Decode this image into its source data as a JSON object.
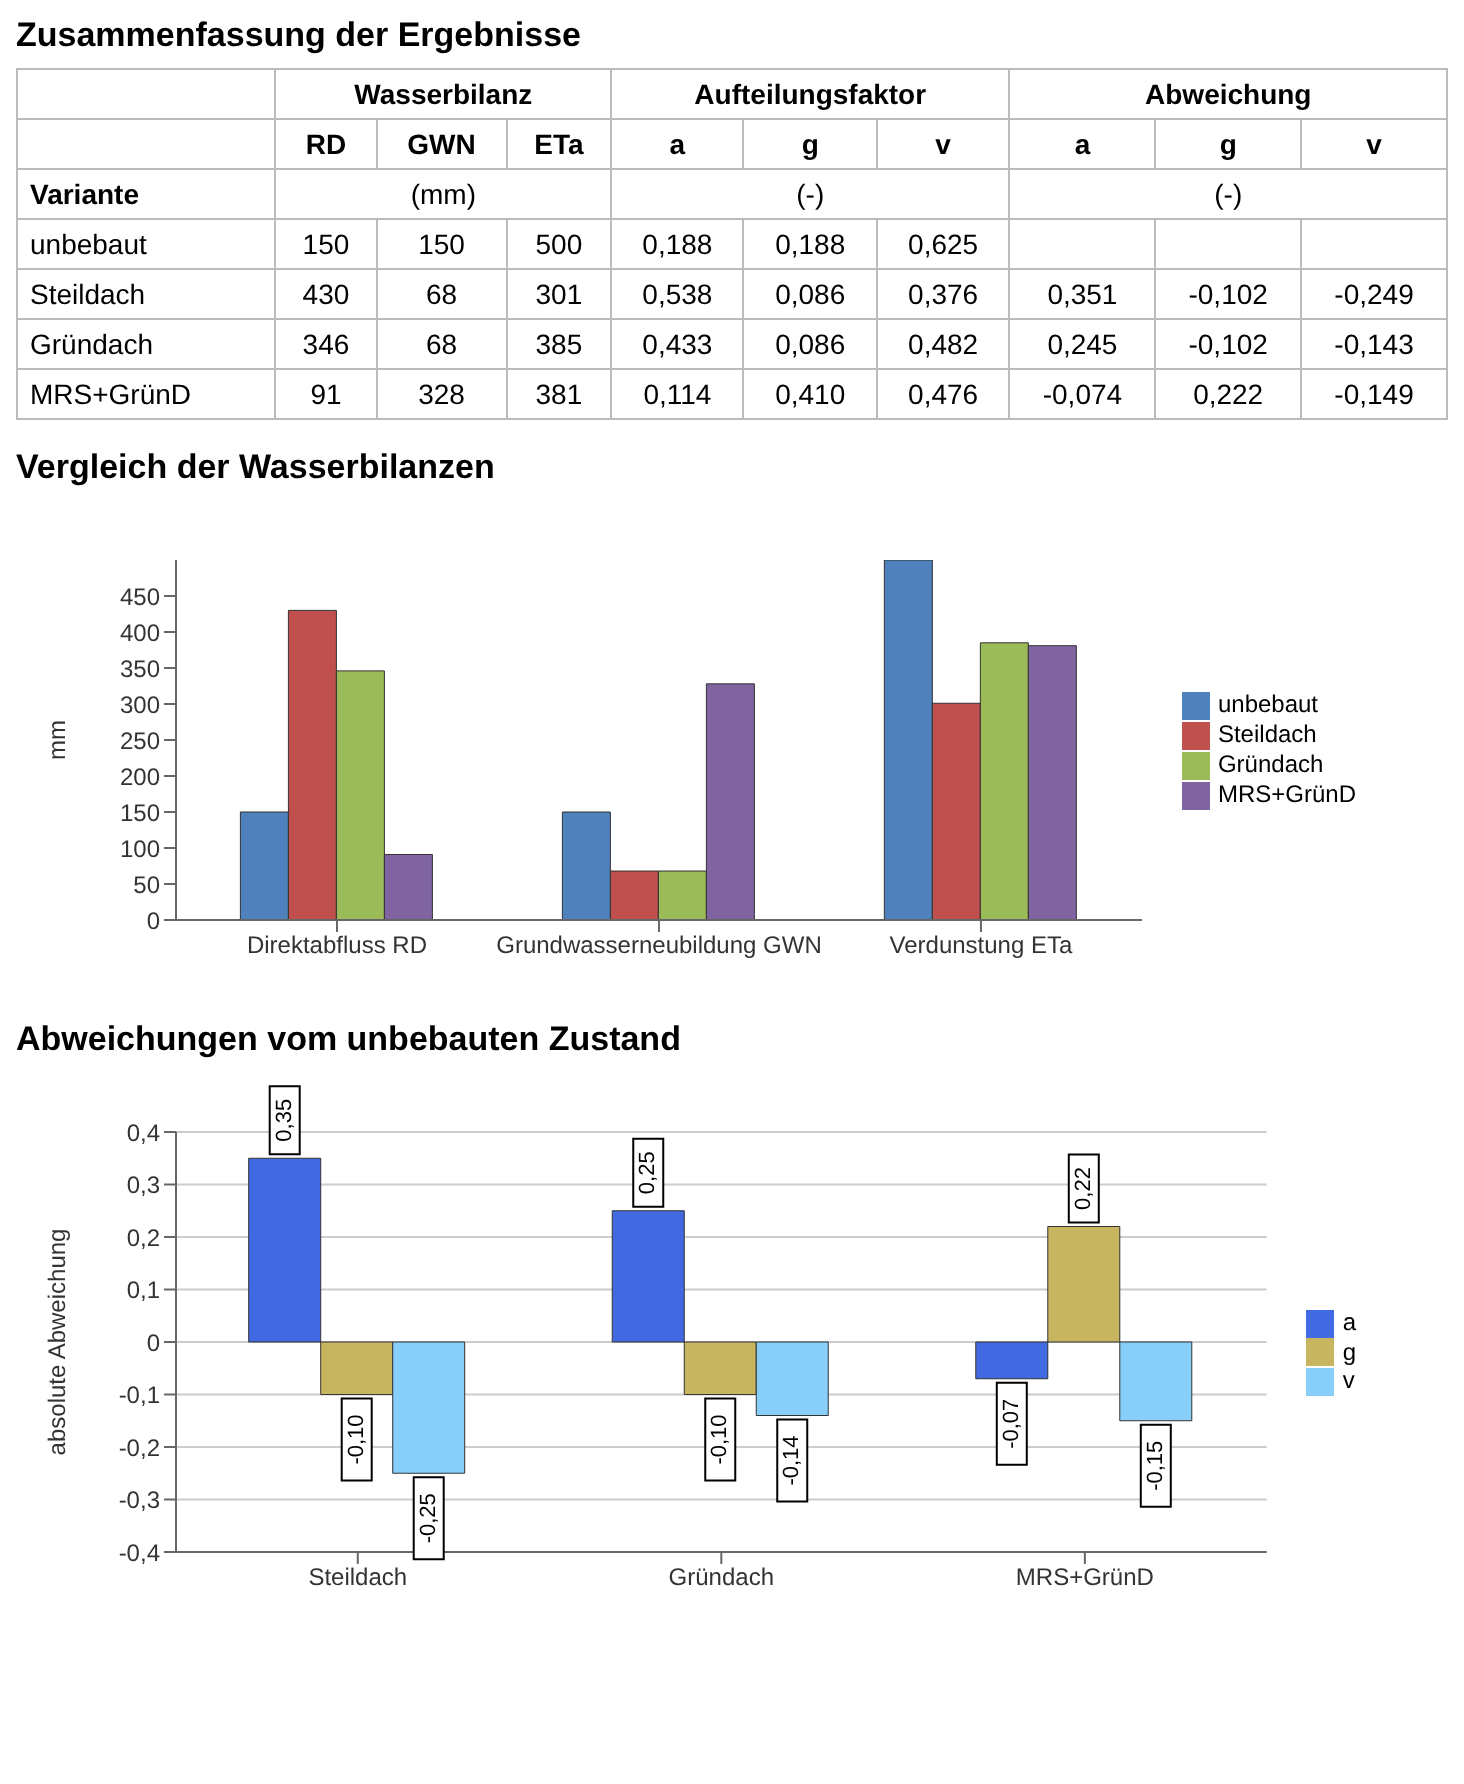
{
  "chart_data": [
    {
      "type": "other",
      "title": "Zusammenfassung der Ergebnisse",
      "categories": [
        "RD",
        "GWN",
        "ETa",
        "a",
        "g",
        "v",
        "a",
        "g",
        "v"
      ],
      "y_categories": [
        "unbebaut",
        "Steildach",
        "Gründach",
        "MRS+GrünD"
      ],
      "annotations": [
        "Wasserbilanz",
        "Aufteilungsfaktor",
        "Abweichung",
        "Variante",
        "(mm)",
        "(-)",
        "(-)"
      ],
      "cell_labels": [
        [
          "150",
          "150",
          "500",
          "0,188",
          "0,188",
          "0,625",
          null,
          null,
          null
        ],
        [
          "430",
          "68",
          "301",
          "0,538",
          "0,086",
          "0,376",
          "0,351",
          "-0,102",
          "-0,249"
        ],
        [
          "346",
          "68",
          "385",
          "0,433",
          "0,086",
          "0,482",
          "0,245",
          "-0,102",
          "-0,143"
        ],
        [
          "91",
          "328",
          "381",
          "0,114",
          "0,410",
          "0,476",
          "-0,074",
          "0,222",
          "-0,149"
        ]
      ]
    },
    {
      "type": "bar",
      "title": "Vergleich der Wasserbilanzen",
      "ylabel": "mm",
      "categories": [
        "Direktabfluss RD",
        "Grundwasserneubildung GWN",
        "Verdunstung ETa"
      ],
      "series": [
        {
          "name": "unbebaut",
          "color": "#4f81bd",
          "values": [
            150,
            150,
            500
          ]
        },
        {
          "name": "Steildach",
          "color": "#c0504d",
          "values": [
            430,
            68,
            301
          ]
        },
        {
          "name": "Gründach",
          "color": "#9bbb59",
          "values": [
            346,
            68,
            385
          ]
        },
        {
          "name": "MRS+GrünD",
          "color": "#8064a2",
          "values": [
            91,
            328,
            381
          ]
        }
      ],
      "ylim": [
        0,
        500
      ],
      "yticks": [
        0,
        50,
        100,
        150,
        200,
        250,
        300,
        350,
        400,
        450
      ],
      "grid": false,
      "legend": "right"
    },
    {
      "type": "bar",
      "title": "Abweichungen vom unbebauten Zustand",
      "ylabel": "absolute Abweichung",
      "categories": [
        "Steildach",
        "Gründach",
        "MRS+GrünD"
      ],
      "series": [
        {
          "name": "a",
          "color": "#4169e1",
          "values": [
            0.35,
            0.25,
            -0.07
          ],
          "value_labels": [
            "0,35",
            "0,25",
            "-0,07"
          ]
        },
        {
          "name": "g",
          "color": "#c8b560",
          "values": [
            -0.1,
            -0.1,
            0.22
          ],
          "value_labels": [
            "-0,10",
            "-0,10",
            "0,22"
          ]
        },
        {
          "name": "v",
          "color": "#87cefa",
          "values": [
            -0.25,
            -0.14,
            -0.15
          ],
          "value_labels": [
            "-0,25",
            "-0,14",
            "-0,15"
          ]
        }
      ],
      "ylim": [
        -0.4,
        0.4
      ],
      "yticks": [
        {
          "value": -0.4,
          "label": "-0,4"
        },
        {
          "value": -0.3,
          "label": "-0,3"
        },
        {
          "value": -0.2,
          "label": "-0,2"
        },
        {
          "value": -0.1,
          "label": "-0,1"
        },
        0,
        {
          "value": 0.1,
          "label": "0,1"
        },
        {
          "value": 0.2,
          "label": "0,2"
        },
        {
          "value": 0.3,
          "label": "0,3"
        },
        {
          "value": 0.4,
          "label": "0,4"
        }
      ],
      "grid": "y",
      "legend": "right"
    }
  ]
}
